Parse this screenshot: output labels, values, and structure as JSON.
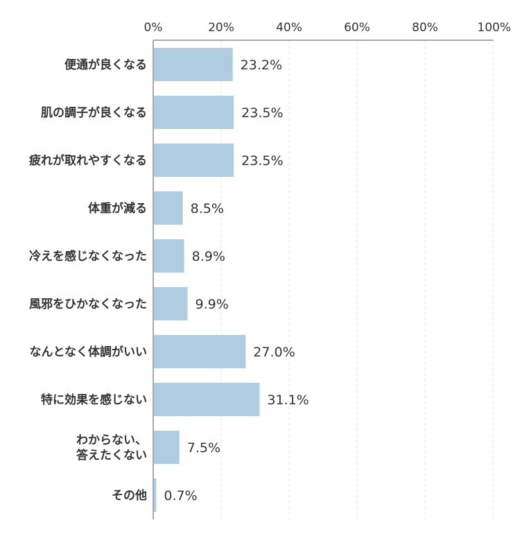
{
  "chart_data": {
    "type": "bar",
    "orientation": "horizontal",
    "title": "",
    "xlabel": "",
    "ylabel": "",
    "xlim": [
      0,
      100
    ],
    "x_ticks": [
      0,
      20,
      40,
      60,
      80,
      100
    ],
    "x_tick_labels": [
      "0%",
      "20%",
      "40%",
      "60%",
      "80%",
      "100%"
    ],
    "x_axis_position": "top",
    "grid": true,
    "legend": "none",
    "bar_color": "#b0cce1",
    "categories": [
      "便通が良くなる",
      "肌の調子が良くなる",
      "疲れが取れやすくなる",
      "体重が減る",
      "冷えを感じなくなった",
      "風邪をひかなくなった",
      "なんとなく体調がいい",
      "特に効果を感じない",
      "わからない、\n答えたくない",
      "その他"
    ],
    "values": [
      23.2,
      23.5,
      23.5,
      8.5,
      8.9,
      9.9,
      27.0,
      31.1,
      7.5,
      0.7
    ],
    "value_labels": [
      "23.2%",
      "23.5%",
      "23.5%",
      "8.5%",
      "8.9%",
      "9.9%",
      "27.0%",
      "31.1%",
      "7.5%",
      "0.7%"
    ]
  }
}
